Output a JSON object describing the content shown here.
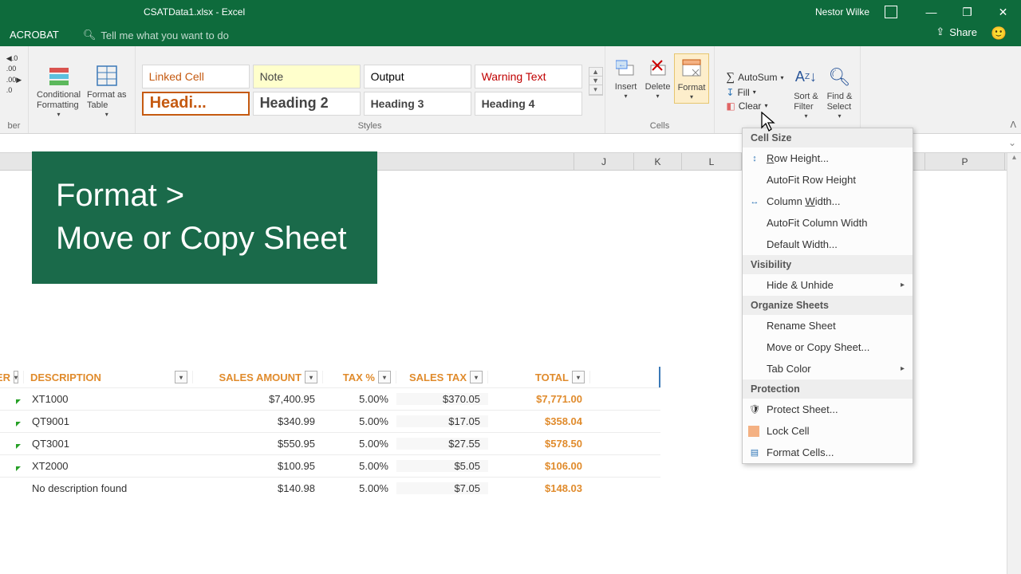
{
  "titlebar": {
    "filename": "CSATData1.xlsx  -  Excel",
    "user": "Nestor Wilke"
  },
  "tabs": {
    "acrobat": "ACROBAT",
    "tellme": "Tell me what you want to do",
    "share": "Share"
  },
  "ribbon": {
    "number_label": "ber",
    "cond_fmt": "Conditional\nFormatting",
    "fmt_table": "Format as\nTable",
    "styles_label": "Styles",
    "style_linked": "Linked Cell",
    "style_note": "Note",
    "style_output": "Output",
    "style_warn": "Warning Text",
    "style_h1": "Headi...",
    "style_h2": "Heading 2",
    "style_h3": "Heading 3",
    "style_h4": "Heading 4",
    "insert": "Insert",
    "delete": "Delete",
    "format": "Format",
    "cells_label": "Cells",
    "autosum": "AutoSum",
    "fill": "Fill",
    "clear": "Clear",
    "sortfilter": "Sort &\nFilter",
    "findselect": "Find &\nSelect"
  },
  "columns": {
    "J": "J",
    "K": "K",
    "L": "L",
    "P": "P"
  },
  "overlay": {
    "line1": "Format >",
    "line2": "Move or Copy Sheet"
  },
  "menu": {
    "cellsize": "Cell Size",
    "rowheight": "Row Height...",
    "autofitrow": "AutoFit Row Height",
    "colwidth": "Column Width...",
    "autofitcol": "AutoFit Column Width",
    "defwidth": "Default Width...",
    "visibility": "Visibility",
    "hideunhide": "Hide & Unhide",
    "organize": "Organize Sheets",
    "rename": "Rename Sheet",
    "movecopy": "Move or Copy Sheet...",
    "tabcolor": "Tab Color",
    "protection": "Protection",
    "protect": "Protect Sheet...",
    "lock": "Lock Cell",
    "formatcells": "Format Cells..."
  },
  "table": {
    "headers": {
      "er": "ER",
      "desc": "DESCRIPTION",
      "sales": "SALES AMOUNT",
      "tax": "TAX %",
      "salestax": "SALES TAX",
      "total": "TOTAL"
    },
    "widths": {
      "er": 30,
      "desc": 212,
      "sales": 163,
      "tax": 92,
      "salestax": 115,
      "total": 128,
      "pad": 88
    },
    "rows": [
      {
        "desc": "XT1000",
        "sales": "$7,400.95",
        "tax": "5.00%",
        "salestax": "$370.05",
        "total": "$7,771.00"
      },
      {
        "desc": "QT9001",
        "sales": "$340.99",
        "tax": "5.00%",
        "salestax": "$17.05",
        "total": "$358.04"
      },
      {
        "desc": "QT3001",
        "sales": "$550.95",
        "tax": "5.00%",
        "salestax": "$27.55",
        "total": "$578.50"
      },
      {
        "desc": "XT2000",
        "sales": "$100.95",
        "tax": "5.00%",
        "salestax": "$5.05",
        "total": "$106.00"
      },
      {
        "desc": "No description found",
        "sales": "$140.98",
        "tax": "5.00%",
        "salestax": "$7.05",
        "total": "$148.03"
      }
    ]
  },
  "colors": {
    "green": "#0e6b3c",
    "overlay_green": "#1a6a4a",
    "orange": "#e08b2c",
    "header_orange": "#c55a11",
    "warn_red": "#c00000"
  }
}
